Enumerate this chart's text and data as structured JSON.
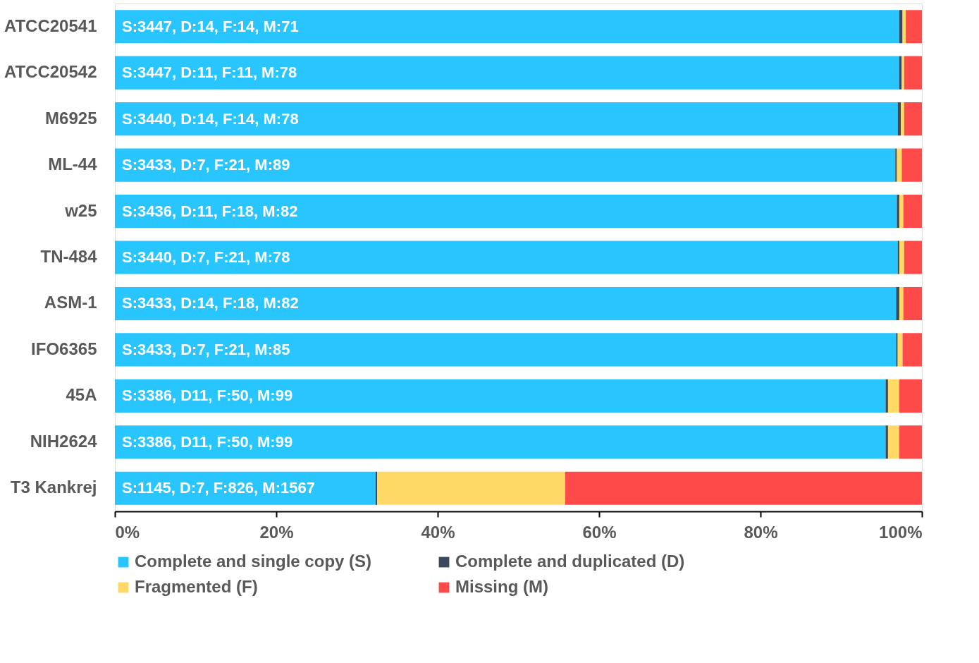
{
  "chart_data": {
    "type": "bar",
    "orientation": "horizontal",
    "stacked": true,
    "categories": [
      "ATCC20541",
      "ATCC20542",
      "M6925",
      "ML-44",
      "w25",
      "TN-484",
      "ASM-1",
      "IFO6365",
      "45A",
      "NIH2624",
      "T3 Kankrej"
    ],
    "series": [
      {
        "name": "Complete and single copy (S)",
        "color": "#29c5ff",
        "values": [
          97.2,
          97.2,
          97.0,
          96.7,
          96.9,
          97.0,
          96.8,
          96.8,
          95.5,
          95.5,
          32.3
        ],
        "value_labels": [
          "S:3447, D:14, F:14, M:71",
          "S:3447, D:11, F:11, M:78",
          "S:3440, D:14, F:14, M:78",
          "S:3433, D:7, F:21, M:89",
          "S:3436, D:11, F:18, M:82",
          "S:3440, D:7, F:21, M:78",
          "S:3433, D:14, F:18, M:82",
          "S:3433, D:7, F:21, M:85",
          "S:3386, D11, F:50, M:99",
          "S:3386, D11, F:50, M:99",
          "S:1145, D:7, F:826, M:1567"
        ]
      },
      {
        "name": "Complete and duplicated (D)",
        "color": "#3a4a5e",
        "values": [
          0.4,
          0.3,
          0.4,
          0.2,
          0.3,
          0.2,
          0.4,
          0.2,
          0.3,
          0.3,
          0.2
        ]
      },
      {
        "name": "Fragmented (F)",
        "color": "#ffd966",
        "values": [
          0.4,
          0.3,
          0.4,
          0.6,
          0.5,
          0.6,
          0.5,
          0.6,
          1.4,
          1.4,
          23.3
        ]
      },
      {
        "name": "Missing (M)",
        "color": "#ff4a4a",
        "values": [
          2.0,
          2.2,
          2.2,
          2.5,
          2.3,
          2.2,
          2.3,
          2.4,
          2.8,
          2.8,
          44.2
        ]
      }
    ],
    "xlim": [
      0,
      100
    ],
    "xticks": [
      {
        "value": 0,
        "label": "0%"
      },
      {
        "value": 20,
        "label": "20%"
      },
      {
        "value": 40,
        "label": "40%"
      },
      {
        "value": 60,
        "label": "60%"
      },
      {
        "value": 80,
        "label": "80%"
      },
      {
        "value": 100,
        "label": "100%"
      }
    ],
    "grid": false,
    "legend": "bottom"
  }
}
